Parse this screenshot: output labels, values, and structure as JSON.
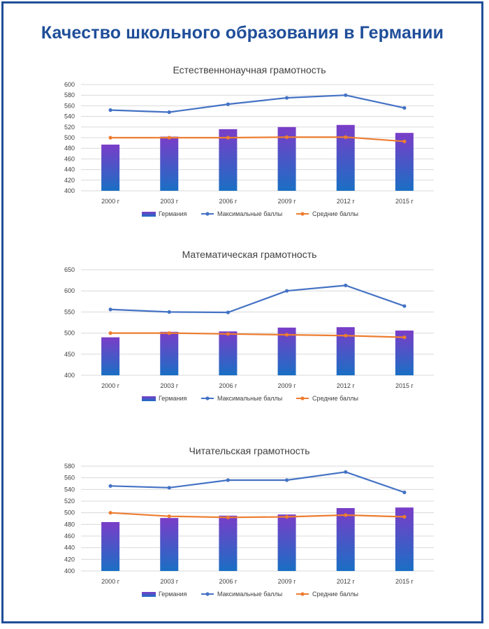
{
  "page": {
    "title": "Качество школьного образования в Германии"
  },
  "colors": {
    "frame": "#1f4e99",
    "title": "#1f4e99",
    "bar_top": "#7a3dc8",
    "bar_bottom": "#1a6fc4",
    "max_line": "#4472c4",
    "avg_line": "#ed7d31",
    "grid": "#d9d9d9",
    "text": "#404040"
  },
  "chart_data": [
    {
      "type": "bar",
      "title": "Естественнонаучная грамотность",
      "categories": [
        "2000 г",
        "2003 г",
        "2006 г",
        "2009 г",
        "2012 г",
        "2015 г"
      ],
      "ylim": [
        400,
        600
      ],
      "yticks": [
        400,
        420,
        440,
        460,
        480,
        500,
        520,
        540,
        560,
        580,
        600
      ],
      "series": [
        {
          "name": "Германия",
          "kind": "bar",
          "values": [
            487,
            502,
            516,
            520,
            524,
            509
          ]
        },
        {
          "name": "Максимальные баллы",
          "kind": "line",
          "values": [
            552,
            548,
            563,
            575,
            580,
            556
          ]
        },
        {
          "name": "Средние баллы",
          "kind": "line",
          "values": [
            500,
            500,
            500,
            501,
            501,
            493
          ]
        }
      ],
      "legend": "bottom",
      "grid": true
    },
    {
      "type": "bar",
      "title": "Математическая грамотность",
      "categories": [
        "2000 г",
        "2003 г",
        "2006 г",
        "2009 г",
        "2012 г",
        "2015 г"
      ],
      "ylim": [
        400,
        650
      ],
      "yticks": [
        400,
        450,
        500,
        550,
        600,
        650
      ],
      "series": [
        {
          "name": "Германия",
          "kind": "bar",
          "values": [
            490,
            503,
            504,
            513,
            514,
            506
          ]
        },
        {
          "name": "Максимальные баллы",
          "kind": "line",
          "values": [
            556,
            550,
            549,
            600,
            613,
            564
          ]
        },
        {
          "name": "Средние баллы",
          "kind": "line",
          "values": [
            500,
            500,
            498,
            496,
            494,
            490
          ]
        }
      ],
      "legend": "bottom",
      "grid": true
    },
    {
      "type": "bar",
      "title": "Читательская грамотность",
      "categories": [
        "2000 г",
        "2003 г",
        "2006 г",
        "2009 г",
        "2012 г",
        "2015 г"
      ],
      "ylim": [
        400,
        580
      ],
      "yticks": [
        400,
        420,
        440,
        460,
        480,
        500,
        520,
        540,
        560,
        580
      ],
      "series": [
        {
          "name": "Германия",
          "kind": "bar",
          "values": [
            484,
            491,
            495,
            497,
            508,
            509
          ]
        },
        {
          "name": "Максимальные баллы",
          "kind": "line",
          "values": [
            546,
            543,
            556,
            556,
            570,
            535
          ]
        },
        {
          "name": "Средние баллы",
          "kind": "line",
          "values": [
            500,
            494,
            492,
            493,
            496,
            493
          ]
        }
      ],
      "legend": "bottom",
      "grid": true
    }
  ]
}
